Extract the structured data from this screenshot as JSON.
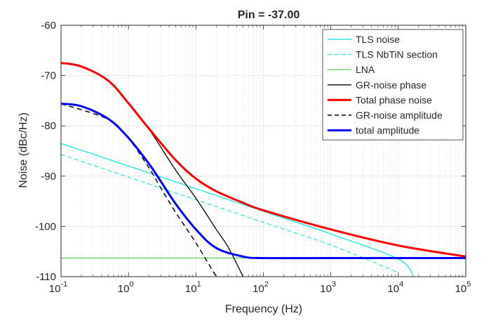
{
  "chart_data": {
    "type": "line",
    "title": "Pin = -37.00",
    "xlabel": "Frequency  (Hz)",
    "ylabel": "Noise (dBc/Hz)",
    "x_scale": "log",
    "xlim": [
      0.1,
      100000
    ],
    "ylim": [
      -110,
      -60
    ],
    "x_ticks": [
      {
        "base": "10",
        "exp": "-1"
      },
      {
        "base": "10",
        "exp": "0"
      },
      {
        "base": "10",
        "exp": "1"
      },
      {
        "base": "10",
        "exp": "2"
      },
      {
        "base": "10",
        "exp": "3"
      },
      {
        "base": "10",
        "exp": "4"
      },
      {
        "base": "10",
        "exp": "5"
      }
    ],
    "y_ticks": [
      "-60",
      "-70",
      "-80",
      "-90",
      "-100",
      "-110"
    ],
    "grid": true,
    "legend_position": "top-right",
    "series": [
      {
        "name": "TLS noise",
        "color": "#00e5e5",
        "style": "solid",
        "width": 1.2,
        "x": [
          0.1,
          1,
          10,
          100,
          1000,
          10000,
          17000
        ],
        "y": [
          -83.5,
          -88.0,
          -92.5,
          -97.0,
          -101.5,
          -106.5,
          -110
        ]
      },
      {
        "name": "TLS NbTiN section",
        "color": "#00e5e5",
        "style": "dashed",
        "width": 1.0,
        "x": [
          0.1,
          1,
          10,
          100,
          1000,
          10000
        ],
        "y": [
          -85.7,
          -90.2,
          -94.7,
          -99.2,
          -103.7,
          -109.2
        ]
      },
      {
        "name": "LNA",
        "color": "#33cc33",
        "style": "solid",
        "width": 1.0,
        "x": [
          0.1,
          100000
        ],
        "y": [
          -106.3,
          -106.3
        ]
      },
      {
        "name": "GR-noise phase",
        "color": "#000000",
        "style": "solid",
        "width": 1.3,
        "x": [
          1,
          2,
          5,
          10,
          20,
          30,
          50
        ],
        "y": [
          -75.5,
          -80.6,
          -88.8,
          -94.4,
          -100.6,
          -104.1,
          -110
        ]
      },
      {
        "name": "Total phase noise",
        "color": "#ff0000",
        "style": "solid",
        "width": 3.0,
        "x": [
          0.1,
          0.2,
          0.5,
          1,
          2,
          5,
          10,
          20,
          50,
          100,
          1000,
          10000,
          100000
        ],
        "y": [
          -67.5,
          -68.2,
          -71.0,
          -75.5,
          -80.5,
          -86.8,
          -90.5,
          -93.0,
          -95.3,
          -96.8,
          -100.6,
          -103.8,
          -106.0
        ]
      },
      {
        "name": "GR-noise amplitude",
        "color": "#000000",
        "style": "dashed",
        "width": 1.5,
        "x": [
          0.1,
          0.5,
          1,
          2,
          3,
          5,
          10,
          20
        ],
        "y": [
          -75.6,
          -78.7,
          -82.5,
          -88.3,
          -92.3,
          -97.2,
          -103.3,
          -110
        ]
      },
      {
        "name": "total amplitude",
        "color": "#0000ff",
        "style": "solid",
        "width": 3.0,
        "x": [
          0.1,
          0.2,
          0.5,
          1,
          2,
          3,
          5,
          10,
          20,
          50,
          100,
          1000,
          10000,
          100000
        ],
        "y": [
          -75.6,
          -76.1,
          -78.6,
          -82.4,
          -87.5,
          -91.0,
          -95.5,
          -100.6,
          -104.3,
          -106.0,
          -106.3,
          -106.3,
          -106.3,
          -106.3
        ]
      }
    ]
  }
}
